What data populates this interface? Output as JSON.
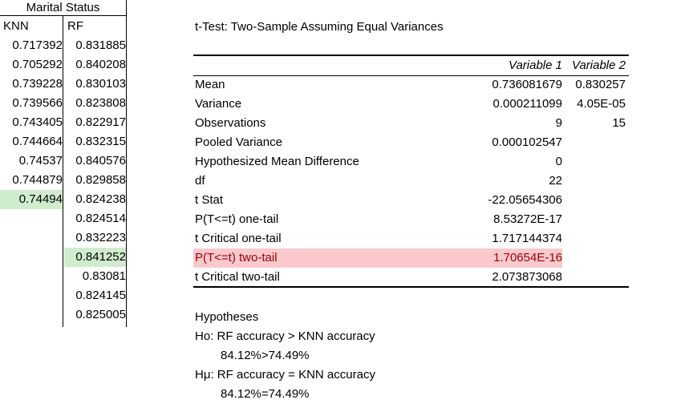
{
  "left_table": {
    "title": "Marital Status",
    "headers": [
      "KNN",
      "RF"
    ],
    "knn": [
      "0.717392",
      "0.705292",
      "0.739228",
      "0.739566",
      "0.743405",
      "0.744664",
      "0.74537",
      "0.744879",
      "0.74494"
    ],
    "rf": [
      "0.831885",
      "0.840208",
      "0.830103",
      "0.823808",
      "0.822917",
      "0.832315",
      "0.840576",
      "0.829858",
      "0.824238",
      "0.824514",
      "0.832223",
      "0.841252",
      "0.83081",
      "0.824145",
      "0.825005"
    ]
  },
  "ttest": {
    "title": "t-Test: Two-Sample Assuming Equal Variances",
    "col_headers": [
      "Variable 1",
      "Variable 2"
    ],
    "rows": [
      {
        "label": "Mean",
        "v1": "0.736081679",
        "v2": "0.830257"
      },
      {
        "label": "Variance",
        "v1": "0.000211099",
        "v2": "4.05E-05"
      },
      {
        "label": "Observations",
        "v1": "9",
        "v2": "15"
      },
      {
        "label": "Pooled Variance",
        "v1": "0.000102547",
        "v2": ""
      },
      {
        "label": "Hypothesized Mean Difference",
        "v1": "0",
        "v2": ""
      },
      {
        "label": "df",
        "v1": "22",
        "v2": ""
      },
      {
        "label": "t Stat",
        "v1": "-22.05654306",
        "v2": ""
      },
      {
        "label": "P(T<=t) one-tail",
        "v1": "8.53272E-17",
        "v2": ""
      },
      {
        "label": "t Critical one-tail",
        "v1": "1.717144374",
        "v2": ""
      },
      {
        "label": "P(T<=t) two-tail",
        "v1": "1.70654E-16",
        "v2": ""
      },
      {
        "label": "t Critical two-tail",
        "v1": "2.073873068",
        "v2": ""
      }
    ]
  },
  "hypotheses": {
    "heading": "Hypotheses",
    "h0_label": "Ho: RF accuracy > KNN accuracy",
    "h0_value": "84.12%>74.49%",
    "h1_label": "Hμ: RF accuracy = KNN accuracy",
    "h1_value": "84.12%=74.49%"
  },
  "highlight_colors": {
    "green": "#cfeccd",
    "red": "#f9c9cc"
  }
}
